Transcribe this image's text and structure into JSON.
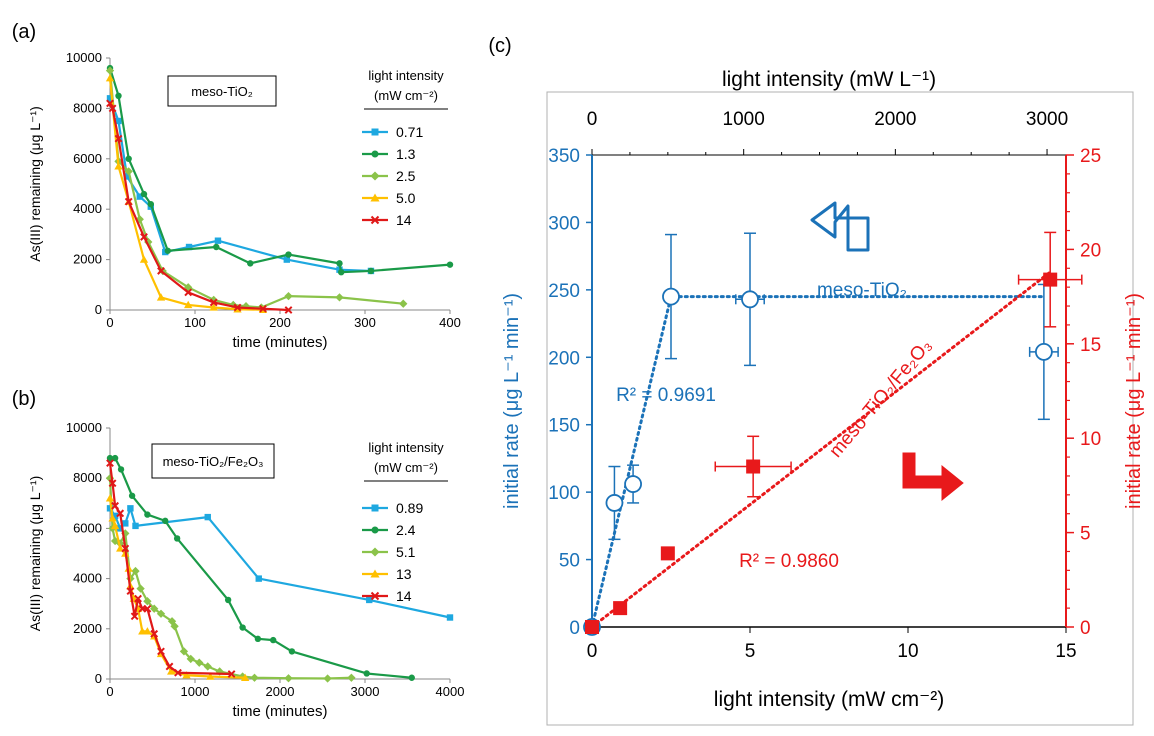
{
  "panel_labels": {
    "a": "(a)",
    "b": "(b)",
    "c": "(c)"
  },
  "chart_data": [
    {
      "id": "a",
      "type": "line",
      "xlabel": "time (minutes)",
      "ylabel": "As(III) remaining (μg L⁻¹)",
      "xlim": [
        0,
        400
      ],
      "ylim": [
        0,
        10000
      ],
      "xticks": [
        0,
        100,
        200,
        300,
        400
      ],
      "yticks": [
        0,
        2000,
        4000,
        6000,
        8000,
        10000
      ],
      "box_label": "meso-TiO₂",
      "legend_title_1": "light intensity",
      "legend_title_2": "(mW cm⁻²)",
      "legend_placement": "right",
      "series": [
        {
          "name": "0.71",
          "color": "#1ea8e0",
          "marker": "square",
          "points": [
            [
              0,
              8400
            ],
            [
              10,
              7500
            ],
            [
              20,
              5300
            ],
            [
              35,
              4500
            ],
            [
              48,
              4100
            ],
            [
              65,
              2300
            ],
            [
              93,
              2500
            ],
            [
              127,
              2750
            ],
            [
              208,
              2000
            ],
            [
              270,
              1600
            ],
            [
              307,
              1550
            ]
          ]
        },
        {
          "name": "1.3",
          "color": "#1a9a48",
          "marker": "circle",
          "points": [
            [
              0,
              9600
            ],
            [
              10,
              8500
            ],
            [
              22,
              6000
            ],
            [
              40,
              4600
            ],
            [
              48,
              4200
            ],
            [
              68,
              2350
            ],
            [
              125,
              2500
            ],
            [
              165,
              1850
            ],
            [
              210,
              2200
            ],
            [
              270,
              1850
            ],
            [
              272,
              1500
            ],
            [
              307,
              1550
            ],
            [
              400,
              1800
            ]
          ]
        },
        {
          "name": "2.5",
          "color": "#8bc34a",
          "marker": "diamond",
          "points": [
            [
              0,
              9500
            ],
            [
              10,
              5900
            ],
            [
              22,
              5500
            ],
            [
              35,
              3600
            ],
            [
              45,
              2700
            ],
            [
              62,
              1550
            ],
            [
              92,
              900
            ],
            [
              122,
              400
            ],
            [
              145,
              200
            ],
            [
              160,
              150
            ],
            [
              178,
              100
            ],
            [
              210,
              550
            ],
            [
              270,
              500
            ],
            [
              345,
              250
            ]
          ]
        },
        {
          "name": "5.0",
          "color": "#ffc000",
          "marker": "triangle",
          "points": [
            [
              0,
              9200
            ],
            [
              10,
              5700
            ],
            [
              22,
              4300
            ],
            [
              40,
              2000
            ],
            [
              60,
              500
            ],
            [
              92,
              200
            ],
            [
              122,
              100
            ],
            [
              150,
              30
            ],
            [
              180,
              10
            ]
          ]
        },
        {
          "name": "14",
          "color": "#e01818",
          "marker": "x",
          "points": [
            [
              0,
              8200
            ],
            [
              3,
              8000
            ],
            [
              10,
              6800
            ],
            [
              22,
              4300
            ],
            [
              40,
              2900
            ],
            [
              60,
              1550
            ],
            [
              92,
              700
            ],
            [
              122,
              300
            ],
            [
              150,
              100
            ],
            [
              180,
              50
            ],
            [
              210,
              0
            ]
          ]
        }
      ]
    },
    {
      "id": "b",
      "type": "line",
      "xlabel": "time (minutes)",
      "ylabel": "As(III) remaining (μg L⁻¹)",
      "xlim": [
        0,
        4000
      ],
      "ylim": [
        0,
        10000
      ],
      "xticks": [
        0,
        1000,
        2000,
        3000,
        4000
      ],
      "yticks": [
        0,
        2000,
        4000,
        6000,
        8000,
        10000
      ],
      "box_label": "meso-TiO₂/Fe₂O₃",
      "legend_title_1": "light intensity",
      "legend_title_2": "(mW cm⁻²)",
      "legend_placement": "right",
      "series": [
        {
          "name": "0.89",
          "color": "#1ea8e0",
          "marker": "square",
          "points": [
            [
              0,
              6800
            ],
            [
              60,
              6500
            ],
            [
              120,
              6000
            ],
            [
              180,
              6200
            ],
            [
              240,
              6800
            ],
            [
              300,
              6100
            ],
            [
              1150,
              6450
            ],
            [
              1750,
              4000
            ],
            [
              3050,
              3150
            ],
            [
              4000,
              2450
            ]
          ]
        },
        {
          "name": "2.4",
          "color": "#1a9a48",
          "marker": "circle",
          "points": [
            [
              0,
              8800
            ],
            [
              60,
              8800
            ],
            [
              130,
              8350
            ],
            [
              260,
              7300
            ],
            [
              440,
              6550
            ],
            [
              650,
              6300
            ],
            [
              790,
              5600
            ],
            [
              1390,
              3150
            ],
            [
              1560,
              2050
            ],
            [
              1740,
              1600
            ],
            [
              1920,
              1550
            ],
            [
              2140,
              1100
            ],
            [
              3020,
              220
            ],
            [
              3550,
              50
            ]
          ]
        },
        {
          "name": "5.1",
          "color": "#8bc34a",
          "marker": "diamond",
          "points": [
            [
              0,
              8000
            ],
            [
              30,
              6000
            ],
            [
              60,
              5500
            ],
            [
              120,
              5400
            ],
            [
              180,
              5800
            ],
            [
              240,
              4000
            ],
            [
              300,
              4300
            ],
            [
              360,
              3600
            ],
            [
              440,
              3100
            ],
            [
              520,
              2800
            ],
            [
              600,
              2600
            ],
            [
              730,
              2300
            ],
            [
              760,
              2100
            ],
            [
              870,
              1100
            ],
            [
              950,
              800
            ],
            [
              1050,
              650
            ],
            [
              1150,
              500
            ],
            [
              1290,
              300
            ],
            [
              1560,
              100
            ],
            [
              1700,
              50
            ],
            [
              2100,
              30
            ],
            [
              2560,
              20
            ],
            [
              2840,
              50
            ]
          ]
        },
        {
          "name": "13",
          "color": "#ffc000",
          "marker": "triangle",
          "points": [
            [
              0,
              7200
            ],
            [
              30,
              6400
            ],
            [
              60,
              6100
            ],
            [
              120,
              5200
            ],
            [
              180,
              5000
            ],
            [
              220,
              4400
            ],
            [
              240,
              3700
            ],
            [
              280,
              3200
            ],
            [
              330,
              2800
            ],
            [
              380,
              1900
            ],
            [
              440,
              1900
            ],
            [
              520,
              1700
            ],
            [
              600,
              1000
            ],
            [
              720,
              300
            ],
            [
              900,
              150
            ],
            [
              1180,
              100
            ],
            [
              1590,
              50
            ]
          ]
        },
        {
          "name": "14",
          "color": "#e01818",
          "marker": "x",
          "points": [
            [
              0,
              8600
            ],
            [
              30,
              7800
            ],
            [
              60,
              6900
            ],
            [
              120,
              6600
            ],
            [
              180,
              5200
            ],
            [
              240,
              3500
            ],
            [
              290,
              2500
            ],
            [
              330,
              3200
            ],
            [
              380,
              2800
            ],
            [
              440,
              2800
            ],
            [
              520,
              1800
            ],
            [
              600,
              1100
            ],
            [
              700,
              500
            ],
            [
              800,
              250
            ],
            [
              1430,
              200
            ]
          ]
        }
      ]
    },
    {
      "id": "c",
      "type": "scatter",
      "xlabel": "light intensity (mW cm⁻²)",
      "xlabel_top": "light intensity (mW L⁻¹)",
      "ylabel_left": "initial rate (μg L⁻¹ min⁻¹)",
      "ylabel_right": "initial rate (μg L⁻¹ min⁻¹)",
      "xlim": [
        0,
        15
      ],
      "xticks": [
        0,
        5,
        10,
        15
      ],
      "xlim_top": [
        0,
        3125
      ],
      "xticks_top": [
        0,
        1000,
        2000,
        3000
      ],
      "ylim_left": [
        0,
        350
      ],
      "yticks_left": [
        0,
        50,
        100,
        150,
        200,
        250,
        300,
        350
      ],
      "ylim_right": [
        0,
        25
      ],
      "yticks_right": [
        0,
        5,
        10,
        15,
        20,
        25
      ],
      "grid": false,
      "series": [
        {
          "name": "meso-TiO₂",
          "axis": "left",
          "color": "#1b72b8",
          "marker": "open-circle",
          "points": [
            {
              "x": 0,
              "y": 0
            },
            {
              "x": 0.71,
              "y": 92,
              "y_err": 27
            },
            {
              "x": 1.3,
              "y": 106,
              "y_err": 14
            },
            {
              "x": 2.5,
              "y": 245,
              "y_err": 46
            },
            {
              "x": 5.0,
              "y": 243,
              "y_err": 49,
              "x_err": 0.45
            },
            {
              "x": 14.3,
              "y": 204,
              "y_err": 50,
              "x_err": 0.45
            }
          ],
          "fit_label": "R² = 0.9691"
        },
        {
          "name": "meso-TiO₂/Fe₂O₃",
          "axis": "right",
          "color": "#e8191b",
          "marker": "filled-square",
          "points": [
            {
              "x": 0,
              "y": 0
            },
            {
              "x": 0.89,
              "y": 1.0
            },
            {
              "x": 2.4,
              "y": 3.9
            },
            {
              "x": 5.1,
              "y": 8.5,
              "y_err": 1.6,
              "x_err": 1.2
            },
            {
              "x": 14.5,
              "y": 18.4,
              "y_err": 2.5,
              "x_err": 1.0
            }
          ],
          "fit_label": "R² = 0.9860"
        }
      ]
    }
  ]
}
